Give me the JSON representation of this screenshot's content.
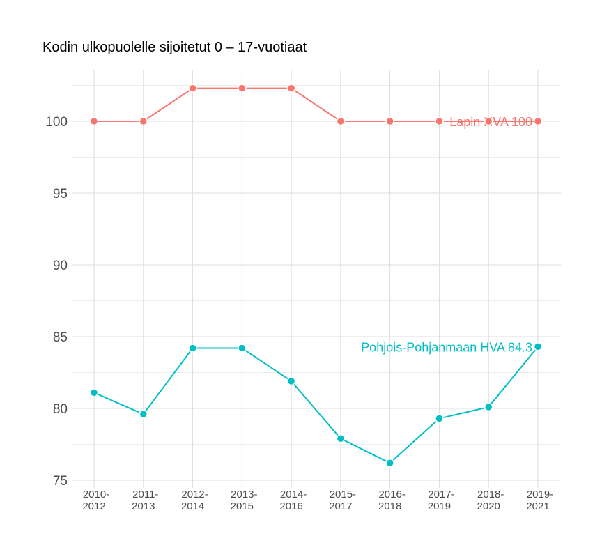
{
  "chart_data": {
    "type": "line",
    "title": "Kodin ulkopuolelle sijoitetut 0 – 17-vuotiaat",
    "xlabel": "",
    "ylabel": "",
    "categories": [
      "2010-\n2012",
      "2011-\n2013",
      "2012-\n2014",
      "2013-\n2015",
      "2014-\n2016",
      "2015-\n2017",
      "2016-\n2018",
      "2017-\n2019",
      "2018-\n2020",
      "2019-\n2021"
    ],
    "yticks": [
      75,
      80,
      85,
      90,
      95,
      100
    ],
    "ylim": [
      74.9,
      103.6
    ],
    "grid": true,
    "series": [
      {
        "name": "Lapin HVA",
        "color": "#F8766D",
        "end_label": "Lapin HVA 100",
        "values": [
          100,
          100,
          102.3,
          102.3,
          102.3,
          100,
          100,
          100,
          100,
          100
        ]
      },
      {
        "name": "Pohjois-Pohjanmaan HVA",
        "color": "#00BFC4",
        "end_label": "Pohjois-Pohjanmaan HVA 84.3",
        "values": [
          81.1,
          79.6,
          84.2,
          84.2,
          81.9,
          77.9,
          76.2,
          79.3,
          80.1,
          84.3
        ]
      }
    ]
  }
}
